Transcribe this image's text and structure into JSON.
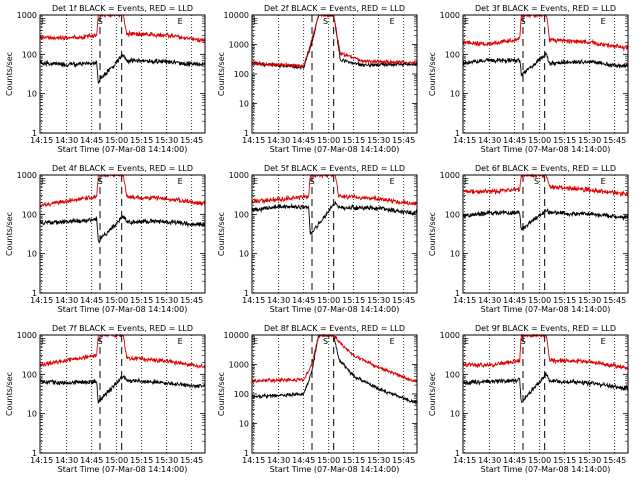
{
  "figure": {
    "panel_title_template": "Det {n}f BLACK = Events, RED = LLD",
    "xlabel": "Start Time (07-Mar-08 14:14:00)",
    "ylabel": "Counts/sec"
  },
  "chart_data": [
    {
      "type": "line",
      "title": "Det 1f BLACK = Events, RED = LLD",
      "xlabel": "Start Time (07-Mar-08 14:14:00)",
      "ylabel": "Counts/sec",
      "yscale": "log",
      "ylim": [
        1,
        1000
      ],
      "yticks": [
        "1",
        "10",
        "100",
        "1000"
      ],
      "xticks": [
        "14:15",
        "14:30",
        "14:45",
        "15:00",
        "15:15",
        "15:30",
        "15:45"
      ],
      "markers": [
        {
          "label": "E",
          "time": "14:14"
        },
        {
          "label": "S",
          "time": "14:48"
        },
        {
          "label": "E",
          "time": "15:36"
        }
      ],
      "dashed_lines": [
        "14:50",
        "15:03"
      ],
      "series": [
        {
          "color": "#000000",
          "points": [
            [
              "14:14",
              60
            ],
            [
              "14:30",
              55
            ],
            [
              "14:48",
              60
            ],
            [
              "14:49",
              20
            ],
            [
              "15:04",
              100
            ],
            [
              "15:06",
              70
            ],
            [
              "15:30",
              65
            ],
            [
              "15:50",
              55
            ]
          ]
        },
        {
          "color": "#dd0000",
          "points": [
            [
              "14:14",
              270
            ],
            [
              "14:30",
              260
            ],
            [
              "14:48",
              300
            ],
            [
              "14:49",
              1000
            ],
            [
              "15:04",
              1000
            ],
            [
              "15:06",
              330
            ],
            [
              "15:30",
              310
            ],
            [
              "15:50",
              230
            ]
          ]
        }
      ]
    },
    {
      "type": "line",
      "title": "Det 2f BLACK = Events, RED = LLD",
      "xlabel": "Start Time (07-Mar-08 14:14:00)",
      "ylabel": "Counts/sec",
      "yscale": "log",
      "ylim": [
        1,
        10000
      ],
      "yticks": [
        "1",
        "10",
        "100",
        "1000",
        "10000"
      ],
      "xticks": [
        "14:15",
        "14:30",
        "14:45",
        "15:00",
        "15:15",
        "15:30",
        "15:45"
      ],
      "markers": [
        {
          "label": "E",
          "time": "14:14"
        },
        {
          "label": "S",
          "time": "14:56"
        },
        {
          "label": "E",
          "time": "15:36"
        }
      ],
      "dashed_lines": [
        "14:50",
        "15:03"
      ],
      "series": [
        {
          "color": "#000000",
          "points": [
            [
              "14:14",
              230
            ],
            [
              "14:45",
              170
            ],
            [
              "14:50",
              1200
            ],
            [
              "14:54",
              10000
            ],
            [
              "15:03",
              10000
            ],
            [
              "15:07",
              300
            ],
            [
              "15:20",
              200
            ],
            [
              "15:50",
              220
            ]
          ]
        },
        {
          "color": "#dd0000",
          "points": [
            [
              "14:14",
              230
            ],
            [
              "14:45",
              190
            ],
            [
              "14:50",
              1500
            ],
            [
              "14:54",
              10000
            ],
            [
              "15:03",
              10000
            ],
            [
              "15:07",
              500
            ],
            [
              "15:20",
              280
            ],
            [
              "15:50",
              240
            ]
          ]
        }
      ]
    },
    {
      "type": "line",
      "title": "Det 3f BLACK = Events, RED = LLD",
      "xlabel": "Start Time (07-Mar-08 14:14:00)",
      "ylabel": "Counts/sec",
      "yscale": "log",
      "ylim": [
        1,
        1000
      ],
      "yticks": [
        "1",
        "10",
        "100",
        "1000"
      ],
      "xticks": [
        "14:15",
        "14:30",
        "14:45",
        "15:00",
        "15:15",
        "15:30",
        "15:45"
      ],
      "markers": [
        {
          "label": "E",
          "time": "14:14"
        },
        {
          "label": "S",
          "time": "14:48"
        },
        {
          "label": "E",
          "time": "15:36"
        }
      ],
      "dashed_lines": [
        "14:50",
        "15:03"
      ],
      "series": [
        {
          "color": "#000000",
          "points": [
            [
              "14:14",
              60
            ],
            [
              "14:30",
              70
            ],
            [
              "14:48",
              70
            ],
            [
              "14:49",
              30
            ],
            [
              "15:04",
              100
            ],
            [
              "15:06",
              60
            ],
            [
              "15:30",
              65
            ],
            [
              "15:50",
              50
            ]
          ]
        },
        {
          "color": "#dd0000",
          "points": [
            [
              "14:14",
              200
            ],
            [
              "14:30",
              180
            ],
            [
              "14:48",
              250
            ],
            [
              "14:49",
              1000
            ],
            [
              "15:04",
              1000
            ],
            [
              "15:06",
              230
            ],
            [
              "15:30",
              200
            ],
            [
              "15:50",
              150
            ]
          ]
        }
      ]
    },
    {
      "type": "line",
      "title": "Det 4f BLACK = Events, RED = LLD",
      "xlabel": "Start Time (07-Mar-08 14:14:00)",
      "ylabel": "Counts/sec",
      "yscale": "log",
      "ylim": [
        1,
        1000
      ],
      "yticks": [
        "1",
        "10",
        "100",
        "1000"
      ],
      "xticks": [
        "14:15",
        "14:30",
        "14:45",
        "15:00",
        "15:15",
        "15:30",
        "15:45"
      ],
      "markers": [
        {
          "label": "E",
          "time": "14:14"
        },
        {
          "label": "S",
          "time": "14:48"
        },
        {
          "label": "E",
          "time": "15:36"
        }
      ],
      "dashed_lines": [
        "14:50",
        "15:03"
      ],
      "series": [
        {
          "color": "#000000",
          "points": [
            [
              "14:14",
              60
            ],
            [
              "14:30",
              65
            ],
            [
              "14:48",
              75
            ],
            [
              "14:49",
              20
            ],
            [
              "15:04",
              90
            ],
            [
              "15:06",
              65
            ],
            [
              "15:30",
              65
            ],
            [
              "15:50",
              55
            ]
          ]
        },
        {
          "color": "#dd0000",
          "points": [
            [
              "14:14",
              170
            ],
            [
              "14:30",
              220
            ],
            [
              "14:48",
              280
            ],
            [
              "14:49",
              1000
            ],
            [
              "15:04",
              1000
            ],
            [
              "15:06",
              280
            ],
            [
              "15:30",
              250
            ],
            [
              "15:50",
              190
            ]
          ]
        }
      ]
    },
    {
      "type": "line",
      "title": "Det 5f BLACK = Events, RED = LLD",
      "xlabel": "Start Time (07-Mar-08 14:14:00)",
      "ylabel": "Counts/sec",
      "yscale": "log",
      "ylim": [
        1,
        1000
      ],
      "yticks": [
        "1",
        "10",
        "100",
        "1000"
      ],
      "xticks": [
        "14:15",
        "14:30",
        "14:45",
        "15:00",
        "15:15",
        "15:30",
        "15:45"
      ],
      "markers": [
        {
          "label": "E",
          "time": "14:14"
        },
        {
          "label": "S",
          "time": "14:48"
        },
        {
          "label": "E",
          "time": "15:36"
        }
      ],
      "dashed_lines": [
        "14:50",
        "15:03"
      ],
      "series": [
        {
          "color": "#000000",
          "points": [
            [
              "14:14",
              130
            ],
            [
              "14:30",
              160
            ],
            [
              "14:48",
              150
            ],
            [
              "14:49",
              30
            ],
            [
              "15:04",
              200
            ],
            [
              "15:06",
              150
            ],
            [
              "15:30",
              140
            ],
            [
              "15:50",
              110
            ]
          ]
        },
        {
          "color": "#dd0000",
          "points": [
            [
              "14:14",
              210
            ],
            [
              "14:30",
              240
            ],
            [
              "14:48",
              280
            ],
            [
              "14:49",
              1000
            ],
            [
              "15:04",
              1000
            ],
            [
              "15:06",
              290
            ],
            [
              "15:30",
              250
            ],
            [
              "15:50",
              190
            ]
          ]
        }
      ]
    },
    {
      "type": "line",
      "title": "Det 6f BLACK = Events, RED = LLD",
      "xlabel": "Start Time (07-Mar-08 14:14:00)",
      "ylabel": "Counts/sec",
      "yscale": "log",
      "ylim": [
        1,
        1000
      ],
      "yticks": [
        "1",
        "10",
        "100",
        "1000"
      ],
      "xticks": [
        "14:15",
        "14:30",
        "14:45",
        "15:00",
        "15:15",
        "15:30",
        "15:45"
      ],
      "markers": [
        {
          "label": "E",
          "time": "14:14"
        },
        {
          "label": "S",
          "time": "14:56"
        },
        {
          "label": "E",
          "time": "15:36"
        }
      ],
      "dashed_lines": [
        "14:50",
        "15:03"
      ],
      "series": [
        {
          "color": "#000000",
          "points": [
            [
              "14:14",
              90
            ],
            [
              "14:30",
              110
            ],
            [
              "14:48",
              110
            ],
            [
              "14:49",
              40
            ],
            [
              "15:04",
              130
            ],
            [
              "15:06",
              110
            ],
            [
              "15:30",
              100
            ],
            [
              "15:50",
              85
            ]
          ]
        },
        {
          "color": "#dd0000",
          "points": [
            [
              "14:14",
              380
            ],
            [
              "14:30",
              380
            ],
            [
              "14:48",
              420
            ],
            [
              "14:49",
              1000
            ],
            [
              "15:04",
              1000
            ],
            [
              "15:06",
              500
            ],
            [
              "15:30",
              420
            ],
            [
              "15:50",
              330
            ]
          ]
        }
      ]
    },
    {
      "type": "line",
      "title": "Det 7f BLACK = Events, RED = LLD",
      "xlabel": "Start Time (07-Mar-08 14:14:00)",
      "ylabel": "Counts/sec",
      "yscale": "log",
      "ylim": [
        1,
        1000
      ],
      "yticks": [
        "1",
        "10",
        "100",
        "1000"
      ],
      "xticks": [
        "14:15",
        "14:30",
        "14:45",
        "15:00",
        "15:15",
        "15:30",
        "15:45"
      ],
      "markers": [
        {
          "label": "E",
          "time": "14:14"
        },
        {
          "label": "S",
          "time": "14:48"
        },
        {
          "label": "E",
          "time": "15:36"
        }
      ],
      "dashed_lines": [
        "14:50",
        "15:03"
      ],
      "series": [
        {
          "color": "#000000",
          "points": [
            [
              "14:14",
              65
            ],
            [
              "14:30",
              60
            ],
            [
              "14:48",
              65
            ],
            [
              "14:49",
              20
            ],
            [
              "15:04",
              90
            ],
            [
              "15:06",
              70
            ],
            [
              "15:30",
              60
            ],
            [
              "15:50",
              50
            ]
          ]
        },
        {
          "color": "#dd0000",
          "points": [
            [
              "14:14",
              170
            ],
            [
              "14:30",
              230
            ],
            [
              "14:48",
              300
            ],
            [
              "14:49",
              1000
            ],
            [
              "15:04",
              1000
            ],
            [
              "15:06",
              260
            ],
            [
              "15:30",
              220
            ],
            [
              "15:50",
              160
            ]
          ]
        }
      ]
    },
    {
      "type": "line",
      "title": "Det 8f BLACK = Events, RED = LLD",
      "xlabel": "Start Time (07-Mar-08 14:14:00)",
      "ylabel": "Counts/sec",
      "yscale": "log",
      "ylim": [
        1,
        10000
      ],
      "yticks": [
        "1",
        "10",
        "100",
        "1000",
        "10000"
      ],
      "xticks": [
        "14:15",
        "14:30",
        "14:45",
        "15:00",
        "15:15",
        "15:30",
        "15:45"
      ],
      "markers": [
        {
          "label": "E",
          "time": "14:14"
        },
        {
          "label": "S",
          "time": "14:56"
        },
        {
          "label": "E",
          "time": "15:36"
        }
      ],
      "dashed_lines": [
        "14:50",
        "15:03"
      ],
      "series": [
        {
          "color": "#000000",
          "points": [
            [
              "14:14",
              80
            ],
            [
              "14:45",
              100
            ],
            [
              "14:50",
              600
            ],
            [
              "14:54",
              10000
            ],
            [
              "15:03",
              10000
            ],
            [
              "15:06",
              1500
            ],
            [
              "15:15",
              400
            ],
            [
              "15:30",
              150
            ],
            [
              "15:50",
              55
            ]
          ]
        },
        {
          "color": "#dd0000",
          "points": [
            [
              "14:14",
              280
            ],
            [
              "14:45",
              300
            ],
            [
              "14:50",
              1000
            ],
            [
              "14:54",
              10000
            ],
            [
              "15:03",
              10000
            ],
            [
              "15:06",
              6000
            ],
            [
              "15:15",
              2000
            ],
            [
              "15:30",
              800
            ],
            [
              "15:50",
              280
            ]
          ]
        }
      ]
    },
    {
      "type": "line",
      "title": "Det 9f BLACK = Events, RED = LLD",
      "xlabel": "Start Time (07-Mar-08 14:14:00)",
      "ylabel": "Counts/sec",
      "yscale": "log",
      "ylim": [
        1,
        1000
      ],
      "yticks": [
        "1",
        "10",
        "100",
        "1000"
      ],
      "xticks": [
        "14:15",
        "14:30",
        "14:45",
        "15:00",
        "15:15",
        "15:30",
        "15:45"
      ],
      "markers": [
        {
          "label": "E",
          "time": "14:14"
        },
        {
          "label": "S",
          "time": "14:48"
        },
        {
          "label": "E",
          "time": "15:36"
        }
      ],
      "dashed_lines": [
        "14:50",
        "15:03"
      ],
      "series": [
        {
          "color": "#000000",
          "points": [
            [
              "14:14",
              60
            ],
            [
              "14:30",
              65
            ],
            [
              "14:48",
              70
            ],
            [
              "14:49",
              20
            ],
            [
              "15:04",
              100
            ],
            [
              "15:06",
              70
            ],
            [
              "15:30",
              60
            ],
            [
              "15:50",
              45
            ]
          ]
        },
        {
          "color": "#dd0000",
          "points": [
            [
              "14:14",
              180
            ],
            [
              "14:30",
              170
            ],
            [
              "14:48",
              220
            ],
            [
              "14:49",
              1000
            ],
            [
              "15:04",
              1000
            ],
            [
              "15:06",
              230
            ],
            [
              "15:30",
              210
            ],
            [
              "15:50",
              150
            ]
          ]
        }
      ]
    }
  ]
}
